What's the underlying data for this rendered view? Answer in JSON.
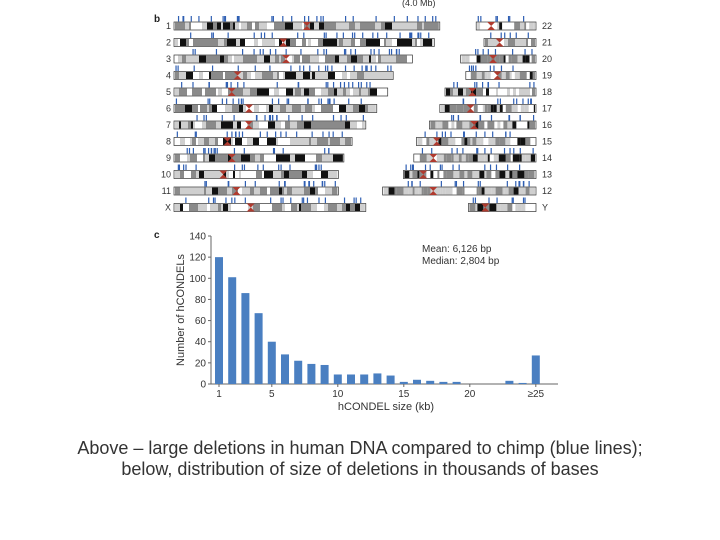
{
  "figure": {
    "top_fragment": "(4.0 Mb)",
    "panel_b_label": "b",
    "panel_c_label": "c",
    "chromosome_colors": {
      "band_dark": "#111111",
      "band_gray": "#8a8a8a",
      "band_light": "#cfcfcf",
      "centromere": "#b03a2e",
      "deletion": "#2f5fb3"
    },
    "left_chromosomes": [
      {
        "label": "1",
        "length": 0.97,
        "centromere": 0.5
      },
      {
        "label": "2",
        "length": 0.95,
        "centromere": 0.42
      },
      {
        "label": "3",
        "length": 0.87,
        "centromere": 0.47
      },
      {
        "label": "4",
        "length": 0.8,
        "centromere": 0.29
      },
      {
        "label": "5",
        "length": 0.78,
        "centromere": 0.27
      },
      {
        "label": "6",
        "length": 0.74,
        "centromere": 0.37
      },
      {
        "label": "7",
        "length": 0.7,
        "centromere": 0.39
      },
      {
        "label": "8",
        "length": 0.65,
        "centromere": 0.3
      },
      {
        "label": "9",
        "length": 0.62,
        "centromere": 0.34
      },
      {
        "label": "10",
        "length": 0.6,
        "centromere": 0.3
      },
      {
        "label": "11",
        "length": 0.6,
        "centromere": 0.38
      },
      {
        "label": "X",
        "length": 0.7,
        "centromere": 0.4
      }
    ],
    "right_chromosomes": [
      {
        "label": "22",
        "length": 0.23,
        "centromere": 0.25
      },
      {
        "label": "21",
        "length": 0.2,
        "centromere": 0.3
      },
      {
        "label": "20",
        "length": 0.29,
        "centromere": 0.43
      },
      {
        "label": "19",
        "length": 0.27,
        "centromere": 0.45
      },
      {
        "label": "18",
        "length": 0.35,
        "centromere": 0.3
      },
      {
        "label": "17",
        "length": 0.37,
        "centromere": 0.32
      },
      {
        "label": "16",
        "length": 0.41,
        "centromere": 0.42
      },
      {
        "label": "15",
        "length": 0.46,
        "centromere": 0.17
      },
      {
        "label": "14",
        "length": 0.47,
        "centromere": 0.16
      },
      {
        "label": "13",
        "length": 0.51,
        "centromere": 0.15
      },
      {
        "label": "12",
        "length": 0.59,
        "centromere": 0.33
      },
      {
        "label": "Y",
        "length": 0.26,
        "centromere": 0.25
      }
    ]
  },
  "chart_data": {
    "type": "bar",
    "ylabel": "Number of hCONDELs",
    "xlabel": "hCONDEL size (kb)",
    "annotation_mean": "Mean: 6,126 bp",
    "annotation_median": "Median: 2,804 bp",
    "ylim": [
      0,
      140
    ],
    "yticks": [
      0,
      20,
      40,
      60,
      80,
      100,
      120,
      140
    ],
    "xticks": [
      {
        "label": "1",
        "index": 0
      },
      {
        "label": "5",
        "index": 4
      },
      {
        "label": "10",
        "index": 9
      },
      {
        "label": "15",
        "index": 14
      },
      {
        "label": "20",
        "index": 19
      },
      {
        "label": "≥25",
        "index": 24
      }
    ],
    "bar_color": "#4a7fc1",
    "values": [
      120,
      101,
      86,
      67,
      40,
      28,
      22,
      19,
      18,
      9,
      9,
      9,
      10,
      8,
      2,
      4,
      3,
      2,
      2,
      0,
      0,
      0,
      3,
      1,
      27
    ]
  },
  "caption": "Above – large deletions in human DNA compared to chimp (blue lines); below, distribution of size of deletions in thousands of bases"
}
